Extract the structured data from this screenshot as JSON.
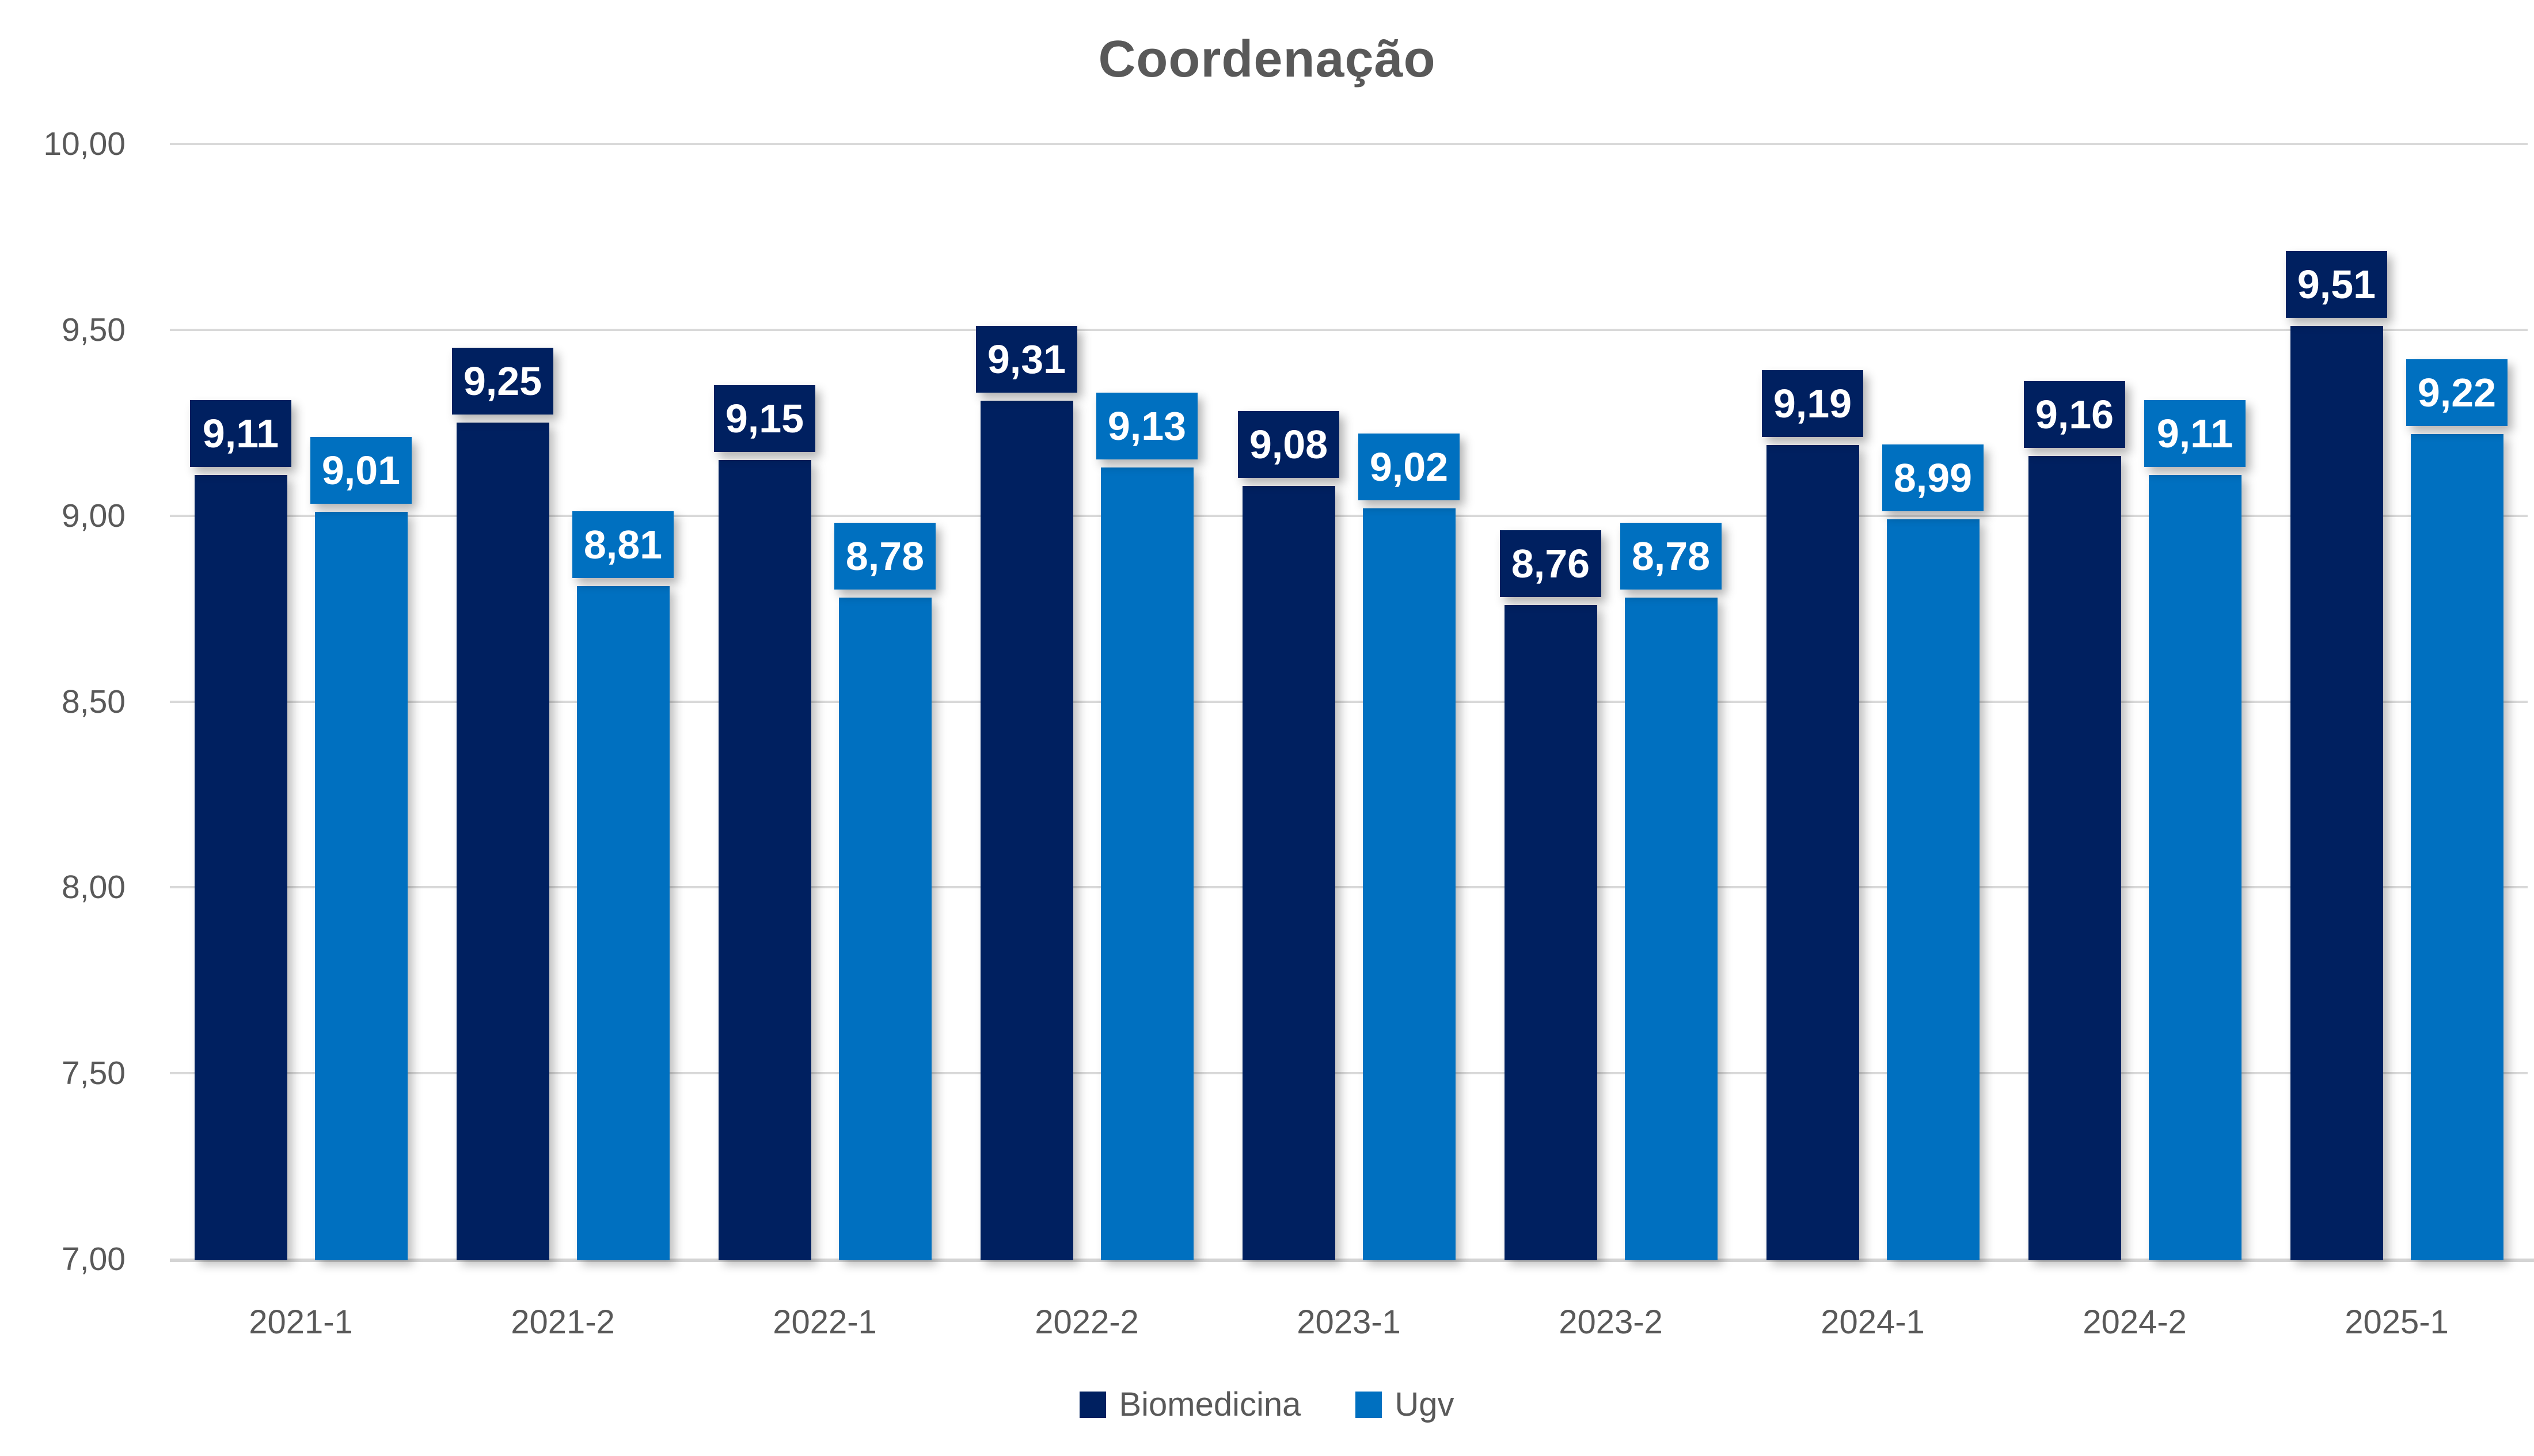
{
  "title": "Coordenação",
  "colors": {
    "biomedicina": "#002060",
    "ugv": "#0070C0",
    "gridline": "#D9D9D9",
    "axis_line": "#D4D4D4",
    "axis_text": "#595959",
    "title_text": "#595959",
    "data_label_text": "#FFFFFF",
    "background": "#FFFFFF"
  },
  "chart_data": {
    "type": "bar",
    "title": "Coordenação",
    "categories": [
      "2021-1",
      "2021-2",
      "2022-1",
      "2022-2",
      "2023-1",
      "2023-2",
      "2024-1",
      "2024-2",
      "2025-1"
    ],
    "series": [
      {
        "name": "Biomedicina",
        "color": "#002060",
        "values": [
          9.11,
          9.25,
          9.15,
          9.31,
          9.08,
          8.76,
          9.19,
          9.16,
          9.51
        ],
        "labels": [
          "9,11",
          "9,25",
          "9,15",
          "9,31",
          "9,08",
          "8,76",
          "9,19",
          "9,16",
          "9,51"
        ]
      },
      {
        "name": "Ugv",
        "color": "#0070C0",
        "values": [
          9.01,
          8.81,
          8.78,
          9.13,
          9.02,
          8.78,
          8.99,
          9.11,
          9.22
        ],
        "labels": [
          "9,01",
          "8,81",
          "8,78",
          "9,13",
          "9,02",
          "8,78",
          "8,99",
          "9,11",
          "9,22"
        ]
      }
    ],
    "xlabel": "",
    "ylabel": "",
    "ylim": [
      7.0,
      10.0
    ],
    "ytick_step": 0.5,
    "ytick_labels": [
      "7,00",
      "7,50",
      "8,00",
      "8,50",
      "9,00",
      "9,50",
      "10,00"
    ],
    "decimal_separator": ",",
    "grid": "horizontal",
    "data_labels": "outside-end-filled",
    "legend_position": "bottom"
  },
  "legend": {
    "items": [
      {
        "label": "Biomedicina"
      },
      {
        "label": "Ugv"
      }
    ]
  }
}
